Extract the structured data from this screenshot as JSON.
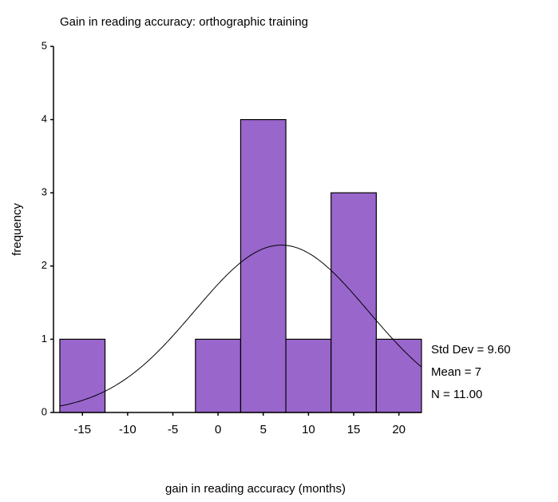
{
  "chart_data": {
    "type": "histogram",
    "title": "Gain in reading accuracy: orthographic training",
    "xlabel": "gain in reading accuracy (months)",
    "ylabel": "frequency",
    "bins": [
      -17.5,
      -12.5,
      -7.5,
      -2.5,
      2.5,
      7.5,
      12.5,
      17.5,
      22.5
    ],
    "values": [
      1,
      0,
      0,
      1,
      4,
      1,
      3,
      1
    ],
    "color": "#9966cc",
    "xlim": [
      -18.2,
      22.5
    ],
    "xticks": [
      -15,
      -10,
      -5,
      0,
      5,
      10,
      15,
      20
    ],
    "ylim": [
      0,
      5
    ],
    "yticks": [
      0,
      1,
      2,
      3,
      4,
      5
    ],
    "curve": {
      "mean": 7,
      "std_dev": 9.6,
      "n": 11
    },
    "annotations": [
      "Std Dev = 9.60",
      "Mean = 7",
      "N = 11.00"
    ]
  }
}
